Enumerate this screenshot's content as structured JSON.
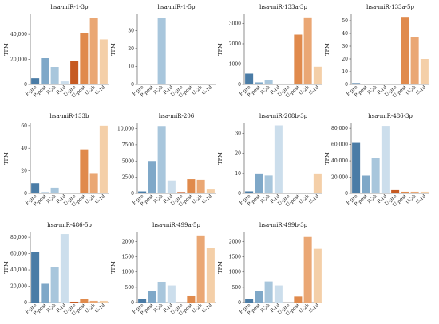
{
  "colors": {
    "P-pre": "#4a7ca6",
    "P-post": "#7fa8c8",
    "P-2h": "#a8c6dc",
    "P-1d": "#ccdeec",
    "U-pre": "#c65a22",
    "U-post": "#e08a4c",
    "U-2h": "#eaa774",
    "U-1d": "#f4cfa8"
  },
  "chart_data": [
    {
      "type": "bar",
      "title": "hsa-miR-1-3p",
      "ylabel": "TPM",
      "categories": [
        "P-pre",
        "P-post",
        "P-2h",
        "P-1d",
        "U-pre",
        "U-post",
        "U-2h",
        "U-1d"
      ],
      "values": [
        5000,
        21000,
        14000,
        2500,
        19000,
        41000,
        53000,
        36000
      ],
      "ylim": [
        0,
        56000
      ],
      "yticks": [
        0,
        20000,
        40000
      ],
      "ytick_labels": [
        "0",
        "20,000",
        "40,000"
      ]
    },
    {
      "type": "bar",
      "title": "hsa-miR-1-5p",
      "ylabel": "TPM",
      "categories": [
        "P-pre",
        "P-post",
        "P-2h",
        "P-1d",
        "U-pre",
        "U-post",
        "U-2h",
        "U-1d"
      ],
      "values": [
        0,
        0,
        37,
        0,
        0,
        0,
        0,
        0
      ],
      "ylim": [
        0,
        39
      ],
      "yticks": [
        0,
        10,
        20,
        30
      ],
      "ytick_labels": [
        "0",
        "10",
        "20",
        "30"
      ]
    },
    {
      "type": "bar",
      "title": "hsa-miR-133a-3p",
      "ylabel": "TPM",
      "categories": [
        "P-pre",
        "P-post",
        "P-2h",
        "P-1d",
        "U-pre",
        "U-post",
        "U-2h",
        "U-1d"
      ],
      "values": [
        530,
        100,
        200,
        0,
        30,
        2450,
        3300,
        870
      ],
      "ylim": [
        0,
        3450
      ],
      "yticks": [
        0,
        1000,
        2000,
        3000
      ],
      "ytick_labels": [
        "0",
        "1000",
        "2000",
        "3000"
      ]
    },
    {
      "type": "bar",
      "title": "hsa-miR-133a-5p",
      "ylabel": "TPM",
      "categories": [
        "P-pre",
        "P-post",
        "P-2h",
        "P-1d",
        "U-pre",
        "U-post",
        "U-2h",
        "U-1d"
      ],
      "values": [
        1,
        0,
        0,
        0,
        0,
        53,
        37,
        20
      ],
      "ylim": [
        0,
        55
      ],
      "yticks": [
        0,
        10,
        20,
        30,
        40,
        50
      ],
      "ytick_labels": [
        "0",
        "10",
        "20",
        "30",
        "40",
        "50"
      ]
    },
    {
      "type": "bar",
      "title": "hsa-miR-133b",
      "ylabel": "TPM",
      "categories": [
        "P-pre",
        "P-post",
        "P-2h",
        "P-1d",
        "U-pre",
        "U-post",
        "U-2h",
        "U-1d"
      ],
      "values": [
        9,
        1,
        5,
        0,
        0,
        39,
        18,
        60
      ],
      "ylim": [
        0,
        62
      ],
      "yticks": [
        0,
        20,
        40,
        60
      ],
      "ytick_labels": [
        "0",
        "20",
        "40",
        "60"
      ]
    },
    {
      "type": "bar",
      "title": "hsa-miR-206",
      "ylabel": "",
      "categories": [
        "P-pre",
        "P-post",
        "P-2h",
        "P-1d",
        "U-pre",
        "U-post",
        "U-2h",
        "U-1d"
      ],
      "values": [
        300,
        5000,
        10400,
        2000,
        200,
        2200,
        2100,
        600
      ],
      "ylim": [
        0,
        10800
      ],
      "yticks": [
        0,
        2500,
        5000,
        7500,
        10000
      ],
      "ytick_labels": [
        "0",
        "2500",
        "5000",
        "7500",
        "10,000"
      ]
    },
    {
      "type": "bar",
      "title": "hsa-miR-208b-3p",
      "ylabel": "TPM",
      "categories": [
        "P-pre",
        "P-post",
        "P-2h",
        "P-1d",
        "U-pre",
        "U-post",
        "U-2h",
        "U-1d"
      ],
      "values": [
        1,
        10,
        9,
        34,
        0,
        0,
        0,
        10
      ],
      "ylim": [
        0,
        35
      ],
      "yticks": [
        0,
        10,
        20,
        30
      ],
      "ytick_labels": [
        "0",
        "10",
        "20",
        "30"
      ]
    },
    {
      "type": "bar",
      "title": "hsa-miR-486-3p",
      "ylabel": "TPM",
      "categories": [
        "P-pre",
        "P-post",
        "P-2h",
        "P-1d",
        "U-pre",
        "U-post",
        "U-2h",
        "U-1d"
      ],
      "values": [
        62000,
        22000,
        43000,
        83000,
        4000,
        2000,
        2000,
        2000
      ],
      "ylim": [
        0,
        86000
      ],
      "yticks": [
        0,
        20000,
        40000,
        60000,
        80000
      ],
      "ytick_labels": [
        "0",
        "20,000",
        "40,000",
        "60,000",
        "80,000"
      ]
    },
    {
      "type": "bar",
      "title": "hsa-miR-486-5p",
      "ylabel": "TPM",
      "categories": [
        "P-pre",
        "P-post",
        "P-2h",
        "P-1d",
        "U-pre",
        "U-post",
        "U-2h",
        "U-1d"
      ],
      "values": [
        62000,
        23000,
        43000,
        84000,
        1000,
        4000,
        2000,
        2000
      ],
      "ylim": [
        0,
        86000
      ],
      "yticks": [
        0,
        20000,
        40000,
        60000,
        80000
      ],
      "ytick_labels": [
        "0",
        "20,000",
        "40,000",
        "60,000",
        "80,000"
      ]
    },
    {
      "type": "bar",
      "title": "hsa-miR-499a-5p",
      "ylabel": "TPM",
      "categories": [
        "P-pre",
        "P-post",
        "P-2h",
        "P-1d",
        "U-pre",
        "U-post",
        "U-2h",
        "U-1d"
      ],
      "values": [
        120,
        380,
        680,
        560,
        0,
        210,
        2200,
        1780
      ],
      "ylim": [
        0,
        2300
      ],
      "yticks": [
        0,
        500,
        1000,
        1500,
        2000
      ],
      "ytick_labels": [
        "0",
        "500",
        "1000",
        "1500",
        "2000"
      ]
    },
    {
      "type": "bar",
      "title": "hsa-miR-499b-3p",
      "ylabel": "TPM",
      "categories": [
        "P-pre",
        "P-post",
        "P-2h",
        "P-1d",
        "U-pre",
        "U-post",
        "U-2h",
        "U-1d"
      ],
      "values": [
        120,
        370,
        690,
        560,
        0,
        200,
        2150,
        1760
      ],
      "ylim": [
        0,
        2300
      ],
      "yticks": [
        0,
        500,
        1000,
        1500,
        2000
      ],
      "ytick_labels": [
        "0",
        "500",
        "1000",
        "1500",
        "2000"
      ]
    }
  ]
}
